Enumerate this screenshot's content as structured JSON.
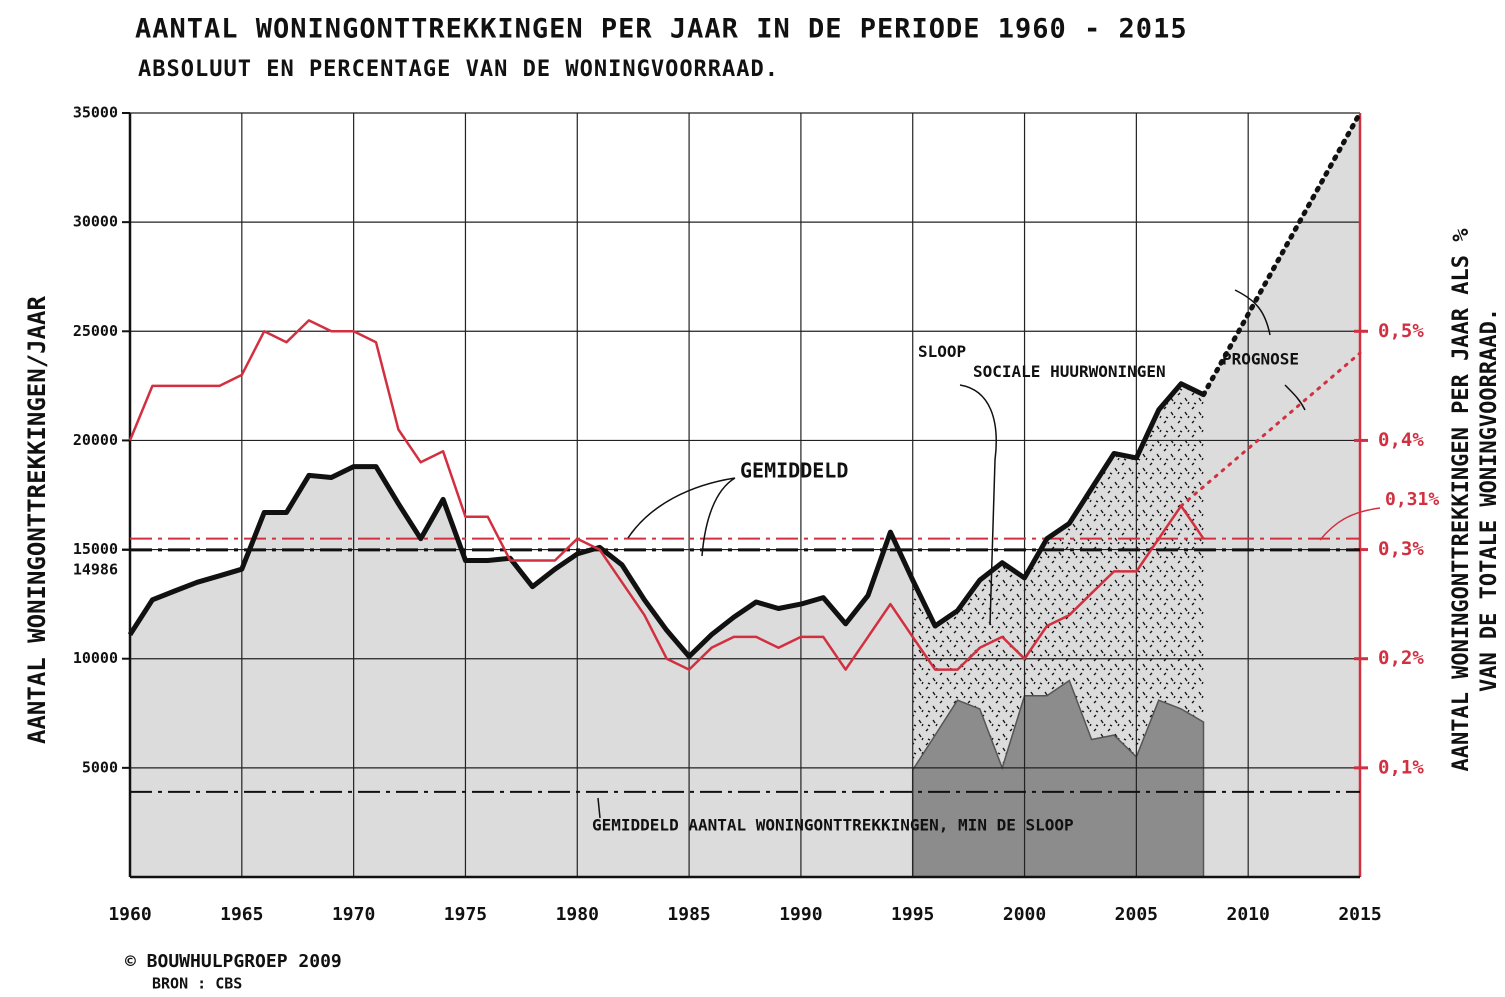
{
  "chart_data": {
    "type": "line",
    "title": "AANTAL WONINGONTTREKKINGEN PER JAAR IN DE PERIODE 1960 - 2015",
    "subtitle": "ABSOLUUT EN PERCENTAGE VAN DE WONINGVOORRAAD.",
    "y_label": "AANTAL WONINGONTTREKKINGEN/JAAR",
    "y2_label": [
      "AANTAL WONINGONTTREKKINGEN PER JAAR ALS %",
      "VAN DE TOTALE WONINGVOORRAAD."
    ],
    "annotations": [
      "GEMIDDELD",
      "SLOOP SOCIALE HUURWONINGEN",
      "PROGNOSE",
      "GEMIDDELD AANTAL WONINGONTTREKKINGEN, MIN DE SLOOP",
      "0,31%"
    ],
    "footer": [
      "© BOUWHULPGROEP 2009",
      "BRON : CBS"
    ],
    "xlim": [
      1960,
      2015
    ],
    "xticks": [
      1960,
      1965,
      1970,
      1975,
      1980,
      1985,
      1990,
      1995,
      2000,
      2005,
      2010,
      2015
    ],
    "ylim": [
      0,
      35000
    ],
    "yticks": [
      5000,
      10000,
      14986,
      15000,
      20000,
      25000,
      30000,
      35000
    ],
    "y2lim": [
      0,
      0.7
    ],
    "y2ticks": [
      {
        "value": 0.1,
        "label": "0,1%"
      },
      {
        "value": 0.2,
        "label": "0,2%"
      },
      {
        "value": 0.3,
        "label": "0,3%"
      },
      {
        "value": 0.4,
        "label": "0,4%"
      },
      {
        "value": 0.5,
        "label": "0,5%"
      }
    ],
    "grid": true,
    "series": [
      {
        "style": "area-line",
        "color": "#111111",
        "fill": "#dcdcdc",
        "x": [
          1960,
          1961,
          1962,
          1963,
          1964,
          1965,
          1966,
          1967,
          1968,
          1969,
          1970,
          1971,
          1972,
          1973,
          1974,
          1975,
          1976,
          1977,
          1978,
          1979,
          1980,
          1981,
          1982,
          1983,
          1984,
          1985,
          1986,
          1987,
          1988,
          1989,
          1990,
          1991,
          1992,
          1993,
          1994,
          1995,
          1996,
          1997,
          1998,
          1999,
          2000,
          2001,
          2002,
          2003,
          2004,
          2005,
          2006,
          2007,
          2008
        ],
        "values": [
          11100,
          12700,
          13100,
          13500,
          13800,
          14100,
          16700,
          16700,
          18400,
          18300,
          18800,
          18800,
          17100,
          15500,
          17300,
          14500,
          14500,
          14600,
          13300,
          14100,
          14800,
          15100,
          14300,
          12700,
          11300,
          10100,
          11100,
          11900,
          12600,
          12300,
          12500,
          12800,
          11600,
          12900,
          15800,
          13600,
          11500,
          12200,
          13600,
          14400,
          13700,
          15500,
          16200,
          17800,
          19400,
          19200,
          21400,
          22600,
          22100
        ]
      },
      {
        "style": "line",
        "axis": "y2",
        "color": "#d23040",
        "x": [
          1960,
          1961,
          1962,
          1963,
          1964,
          1965,
          1966,
          1967,
          1968,
          1969,
          1970,
          1971,
          1972,
          1973,
          1974,
          1975,
          1976,
          1977,
          1978,
          1979,
          1980,
          1981,
          1982,
          1983,
          1984,
          1985,
          1986,
          1987,
          1988,
          1989,
          1990,
          1991,
          1992,
          1993,
          1994,
          1995,
          1996,
          1997,
          1998,
          1999,
          2000,
          2001,
          2002,
          2003,
          2004,
          2005,
          2006,
          2007,
          2008
        ],
        "values": [
          0.4,
          0.45,
          0.45,
          0.45,
          0.45,
          0.46,
          0.5,
          0.49,
          0.51,
          0.5,
          0.5,
          0.49,
          0.41,
          0.38,
          0.39,
          0.33,
          0.33,
          0.29,
          0.29,
          0.29,
          0.31,
          0.3,
          0.27,
          0.24,
          0.2,
          0.19,
          0.21,
          0.22,
          0.22,
          0.21,
          0.22,
          0.22,
          0.19,
          0.22,
          0.25,
          0.22,
          0.19,
          0.19,
          0.21,
          0.22,
          0.2,
          0.23,
          0.24,
          0.26,
          0.28,
          0.28,
          0.31,
          0.34,
          0.31
        ]
      },
      {
        "style": "area",
        "color": "#8c8c8c",
        "x": [
          1995,
          1996,
          1997,
          1998,
          1999,
          2000,
          2001,
          2002,
          2003,
          2004,
          2005,
          2006,
          2007,
          2008
        ],
        "values": [
          4900,
          6500,
          8100,
          7700,
          5000,
          8300,
          8300,
          9000,
          6300,
          6500,
          5500,
          8100,
          7700,
          7100
        ]
      },
      {
        "style": "dotted",
        "color": "#111111",
        "fill": "#dcdcdc",
        "x": [
          2008,
          2015
        ],
        "values": [
          22100,
          35000
        ]
      },
      {
        "style": "dotted",
        "axis": "y2",
        "color": "#d23040",
        "x": [
          2007,
          2015
        ],
        "values": [
          0.34,
          0.48
        ]
      }
    ],
    "reference_lines": [
      {
        "value": 14986,
        "color": "#111111"
      },
      {
        "value": 0.31,
        "axis": "y2",
        "color": "#d23040"
      },
      {
        "value": 3900,
        "color": "#111111"
      }
    ]
  }
}
